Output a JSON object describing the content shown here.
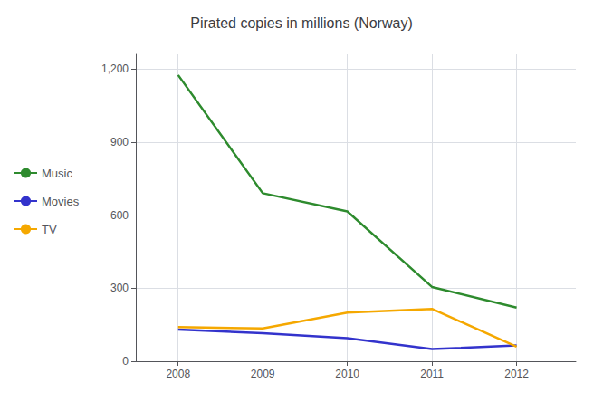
{
  "chart_data": {
    "type": "line",
    "title": "Pirated copies in millions (Norway)",
    "x": [
      2008,
      2009,
      2010,
      2011,
      2012
    ],
    "series": [
      {
        "name": "Music",
        "color": "#2e8b2e",
        "values": [
          1175,
          690,
          615,
          305,
          220
        ]
      },
      {
        "name": "Movies",
        "color": "#3333cc",
        "values": [
          130,
          115,
          95,
          50,
          65
        ]
      },
      {
        "name": "TV",
        "color": "#f5a800",
        "values": [
          140,
          135,
          200,
          215,
          60
        ]
      }
    ],
    "xlim": [
      2007.5,
      2012.7
    ],
    "xticks": [
      2008,
      2009,
      2010,
      2011,
      2012
    ],
    "ylim": [
      0,
      1260
    ],
    "yticks": [
      0,
      300,
      600,
      900,
      {
        "value": 1200,
        "label": "1,200"
      }
    ],
    "grid": true,
    "legend": "left"
  }
}
